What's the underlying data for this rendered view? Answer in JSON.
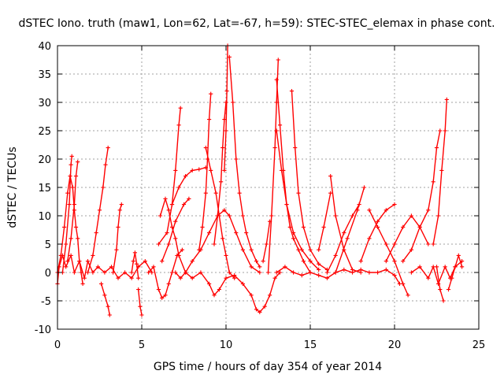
{
  "chart_data": {
    "type": "scatter",
    "title": "dSTEC Iono. truth (maw1, Lon=62, Lat=-67, h=59): STEC-STEC_elemax in phase cont.",
    "xlabel": "GPS time / hours of day 354 of year 2014",
    "ylabel": "dSTEC  / TECUs",
    "xlim": [
      0,
      25
    ],
    "ylim": [
      -10,
      40
    ],
    "x_ticks": [
      0,
      5,
      10,
      15,
      20,
      25
    ],
    "y_ticks": [
      -10,
      -5,
      0,
      5,
      10,
      15,
      20,
      25,
      30,
      35,
      40
    ],
    "grid": true,
    "marker": "plus",
    "color": "#ff0000",
    "series": [
      {
        "points": [
          [
            0.0,
            0.0
          ],
          [
            0.2,
            3.0
          ],
          [
            0.4,
            8.0
          ],
          [
            0.6,
            14.0
          ],
          [
            0.75,
            17.0
          ],
          [
            0.9,
            15.0
          ],
          [
            1.0,
            11.0
          ],
          [
            1.1,
            8.0
          ],
          [
            1.2,
            6.0
          ],
          [
            1.3,
            2.0
          ],
          [
            1.4,
            0.0
          ],
          [
            1.5,
            -2.0
          ]
        ]
      },
      {
        "points": [
          [
            0.3,
            0.0
          ],
          [
            0.5,
            5.0
          ],
          [
            0.7,
            12.0
          ],
          [
            0.8,
            19.0
          ],
          [
            0.85,
            20.5
          ]
        ]
      },
      {
        "points": [
          [
            0.6,
            2.0
          ],
          [
            0.8,
            6.0
          ],
          [
            1.0,
            12.0
          ],
          [
            1.1,
            17.0
          ],
          [
            1.2,
            19.5
          ]
        ]
      },
      {
        "points": [
          [
            0.0,
            -2.0
          ],
          [
            0.1,
            1.0
          ],
          [
            0.3,
            3.0
          ],
          [
            0.5,
            1.0
          ],
          [
            0.8,
            3.0
          ],
          [
            1.0,
            0.0
          ],
          [
            1.3,
            2.0
          ],
          [
            1.6,
            -1.0
          ],
          [
            1.8,
            2.0
          ],
          [
            2.1,
            0.0
          ],
          [
            2.4,
            1.0
          ],
          [
            2.8,
            0.0
          ],
          [
            3.2,
            1.0
          ],
          [
            3.6,
            -1.0
          ],
          [
            4.0,
            0.0
          ],
          [
            4.4,
            -1.0
          ],
          [
            4.8,
            1.0
          ],
          [
            5.2,
            2.0
          ],
          [
            5.6,
            0.0
          ]
        ]
      },
      {
        "points": [
          [
            1.8,
            0.0
          ],
          [
            2.1,
            3.0
          ],
          [
            2.3,
            7.0
          ],
          [
            2.5,
            11.0
          ],
          [
            2.7,
            15.0
          ],
          [
            2.85,
            19.0
          ],
          [
            3.0,
            22.0
          ]
        ]
      },
      {
        "points": [
          [
            2.6,
            -2.0
          ],
          [
            2.8,
            -4.0
          ],
          [
            3.0,
            -6.0
          ],
          [
            3.1,
            -7.5
          ]
        ]
      },
      {
        "points": [
          [
            3.3,
            0.0
          ],
          [
            3.5,
            4.0
          ],
          [
            3.6,
            8.0
          ],
          [
            3.7,
            11.0
          ],
          [
            3.8,
            12.0
          ]
        ]
      },
      {
        "points": [
          [
            4.4,
            0.0
          ],
          [
            4.5,
            2.0
          ],
          [
            4.6,
            3.5
          ],
          [
            4.7,
            1.5
          ],
          [
            4.8,
            -1.0
          ]
        ]
      },
      {
        "points": [
          [
            4.8,
            -3.0
          ],
          [
            4.9,
            -6.0
          ],
          [
            5.0,
            -7.5
          ]
        ]
      },
      {
        "points": [
          [
            5.4,
            0.0
          ],
          [
            5.7,
            1.0
          ],
          [
            6.0,
            -3.0
          ],
          [
            6.2,
            -4.5
          ],
          [
            6.4,
            -4.0
          ],
          [
            6.6,
            -2.0
          ],
          [
            6.8,
            0.0
          ],
          [
            7.1,
            3.0
          ],
          [
            7.4,
            4.0
          ]
        ]
      },
      {
        "points": [
          [
            6.1,
            10.0
          ],
          [
            6.4,
            13.0
          ],
          [
            6.6,
            11.0
          ],
          [
            6.8,
            8.0
          ],
          [
            7.0,
            6.0
          ],
          [
            7.2,
            3.0
          ],
          [
            7.6,
            0.0
          ],
          [
            8.0,
            -1.0
          ],
          [
            8.5,
            0.0
          ],
          [
            9.0,
            -2.0
          ],
          [
            9.3,
            -4.0
          ],
          [
            9.6,
            -3.0
          ],
          [
            10.0,
            -1.0
          ],
          [
            10.5,
            -0.5
          ],
          [
            11.0,
            -2.0
          ],
          [
            11.5,
            -4.0
          ],
          [
            11.8,
            -6.5
          ],
          [
            12.0,
            -7.0
          ],
          [
            12.3,
            -6.0
          ],
          [
            12.6,
            -4.0
          ],
          [
            12.9,
            -1.0
          ],
          [
            13.2,
            0.0
          ]
        ]
      },
      {
        "points": [
          [
            6.0,
            5.0
          ],
          [
            6.5,
            7.0
          ],
          [
            6.8,
            12.0
          ],
          [
            7.0,
            18.0
          ],
          [
            7.2,
            26.0
          ],
          [
            7.3,
            29.0
          ]
        ]
      },
      {
        "points": [
          [
            7.0,
            0.0
          ],
          [
            7.3,
            -1.0
          ],
          [
            7.6,
            0.0
          ],
          [
            8.0,
            2.0
          ],
          [
            8.5,
            4.0
          ],
          [
            9.0,
            7.0
          ],
          [
            9.5,
            10.0
          ],
          [
            9.9,
            11.0
          ],
          [
            10.2,
            10.0
          ],
          [
            10.6,
            7.0
          ],
          [
            11.0,
            4.0
          ],
          [
            11.5,
            1.0
          ],
          [
            12.0,
            0.0
          ]
        ]
      },
      {
        "points": [
          [
            6.8,
            12.0
          ],
          [
            7.2,
            15.0
          ],
          [
            7.6,
            17.0
          ],
          [
            8.0,
            18.0
          ],
          [
            8.4,
            18.2
          ],
          [
            8.8,
            18.5
          ]
        ]
      },
      {
        "points": [
          [
            6.2,
            2.0
          ],
          [
            6.6,
            5.0
          ],
          [
            7.0,
            9.0
          ],
          [
            7.5,
            12.0
          ],
          [
            7.8,
            13.0
          ]
        ]
      },
      {
        "points": [
          [
            8.4,
            4.0
          ],
          [
            8.6,
            8.0
          ],
          [
            8.8,
            14.0
          ],
          [
            8.9,
            20.0
          ],
          [
            9.0,
            27.0
          ],
          [
            9.1,
            31.5
          ]
        ]
      },
      {
        "points": [
          [
            8.8,
            22.0
          ],
          [
            9.1,
            18.0
          ],
          [
            9.4,
            14.0
          ],
          [
            9.6,
            10.0
          ],
          [
            9.8,
            6.0
          ],
          [
            10.0,
            3.0
          ],
          [
            10.2,
            0.0
          ],
          [
            10.5,
            -1.0
          ]
        ]
      },
      {
        "points": [
          [
            9.3,
            5.0
          ],
          [
            9.5,
            10.0
          ],
          [
            9.7,
            16.0
          ],
          [
            9.8,
            22.0
          ],
          [
            9.9,
            27.0
          ],
          [
            10.0,
            30.0
          ]
        ]
      },
      {
        "points": [
          [
            9.9,
            18.0
          ],
          [
            10.0,
            25.0
          ],
          [
            10.05,
            32.0
          ],
          [
            10.1,
            40.0
          ]
        ]
      },
      {
        "points": [
          [
            10.2,
            38.0
          ],
          [
            10.4,
            30.0
          ],
          [
            10.6,
            20.0
          ],
          [
            10.8,
            14.0
          ],
          [
            11.0,
            10.0
          ],
          [
            11.2,
            7.0
          ],
          [
            11.5,
            4.0
          ],
          [
            11.8,
            2.0
          ],
          [
            12.0,
            1.0
          ]
        ]
      },
      {
        "points": [
          [
            12.2,
            2.0
          ],
          [
            12.4,
            5.0
          ],
          [
            12.6,
            9.0
          ]
        ]
      },
      {
        "points": [
          [
            12.5,
            0.0
          ],
          [
            12.7,
            10.0
          ],
          [
            12.9,
            22.0
          ],
          [
            13.0,
            30.0
          ],
          [
            13.1,
            37.5
          ]
        ]
      },
      {
        "points": [
          [
            13.0,
            34.0
          ],
          [
            13.2,
            26.0
          ],
          [
            13.4,
            18.0
          ],
          [
            13.6,
            12.0
          ],
          [
            13.8,
            8.0
          ],
          [
            14.0,
            6.0
          ],
          [
            14.3,
            4.0
          ],
          [
            14.6,
            2.0
          ],
          [
            15.0,
            0.0
          ]
        ]
      },
      {
        "points": [
          [
            13.0,
            25.0
          ],
          [
            13.3,
            18.0
          ],
          [
            13.6,
            12.0
          ],
          [
            14.0,
            7.0
          ],
          [
            14.5,
            4.0
          ],
          [
            15.0,
            2.0
          ],
          [
            15.5,
            0.5
          ]
        ]
      },
      {
        "points": [
          [
            13.9,
            32.0
          ],
          [
            14.1,
            22.0
          ],
          [
            14.3,
            14.0
          ],
          [
            14.6,
            8.0
          ],
          [
            15.0,
            4.0
          ],
          [
            15.5,
            1.5
          ],
          [
            16.0,
            0.5
          ]
        ]
      },
      {
        "points": [
          [
            13.0,
            0.0
          ],
          [
            13.5,
            1.0
          ],
          [
            14.0,
            0.0
          ],
          [
            14.5,
            -0.5
          ],
          [
            15.0,
            0.0
          ],
          [
            15.5,
            -0.5
          ],
          [
            16.0,
            -1.0
          ],
          [
            16.5,
            0.0
          ],
          [
            17.0,
            0.5
          ],
          [
            17.5,
            0.0
          ],
          [
            18.0,
            0.5
          ],
          [
            18.5,
            0.0
          ],
          [
            19.0,
            0.0
          ],
          [
            19.5,
            0.5
          ],
          [
            20.0,
            -0.5
          ],
          [
            20.3,
            -2.0
          ]
        ]
      },
      {
        "points": [
          [
            15.5,
            4.0
          ],
          [
            15.8,
            8.0
          ],
          [
            16.2,
            14.0
          ]
        ]
      },
      {
        "points": [
          [
            16.2,
            17.0
          ],
          [
            16.5,
            10.0
          ],
          [
            17.0,
            4.0
          ],
          [
            17.5,
            0.5
          ],
          [
            18.0,
            0.0
          ]
        ]
      },
      {
        "points": [
          [
            16.0,
            0.0
          ],
          [
            16.5,
            3.0
          ],
          [
            17.0,
            7.0
          ],
          [
            17.5,
            10.0
          ],
          [
            17.9,
            12.0
          ]
        ]
      },
      {
        "points": [
          [
            16.5,
            0.0
          ],
          [
            17.2,
            6.0
          ],
          [
            17.8,
            11.0
          ],
          [
            18.2,
            15.0
          ]
        ]
      },
      {
        "points": [
          [
            18.0,
            2.0
          ],
          [
            18.5,
            6.0
          ],
          [
            19.0,
            9.0
          ],
          [
            19.5,
            11.0
          ],
          [
            20.0,
            12.0
          ]
        ]
      },
      {
        "points": [
          [
            18.5,
            11.0
          ],
          [
            19.0,
            8.0
          ],
          [
            19.5,
            5.0
          ],
          [
            20.0,
            2.0
          ],
          [
            20.5,
            -2.0
          ],
          [
            20.8,
            -4.0
          ]
        ]
      },
      {
        "points": [
          [
            19.5,
            2.0
          ],
          [
            20.0,
            5.0
          ],
          [
            20.5,
            8.0
          ],
          [
            21.0,
            10.0
          ],
          [
            21.5,
            8.0
          ],
          [
            22.0,
            5.0
          ]
        ]
      },
      {
        "points": [
          [
            20.5,
            2.0
          ],
          [
            21.0,
            4.0
          ],
          [
            21.5,
            8.0
          ],
          [
            22.0,
            11.0
          ],
          [
            22.3,
            16.0
          ],
          [
            22.5,
            22.0
          ],
          [
            22.7,
            25.0
          ]
        ]
      },
      {
        "points": [
          [
            21.0,
            0.0
          ],
          [
            21.5,
            1.0
          ],
          [
            22.0,
            -1.0
          ],
          [
            22.3,
            1.0
          ],
          [
            22.6,
            -2.0
          ],
          [
            23.0,
            1.0
          ],
          [
            23.3,
            -1.0
          ],
          [
            23.6,
            1.0
          ],
          [
            24.0,
            2.0
          ]
        ]
      },
      {
        "points": [
          [
            22.5,
            1.0
          ],
          [
            22.7,
            -3.0
          ],
          [
            22.9,
            -5.0
          ]
        ]
      },
      {
        "points": [
          [
            22.3,
            5.0
          ],
          [
            22.6,
            10.0
          ],
          [
            22.8,
            18.0
          ],
          [
            23.0,
            25.0
          ],
          [
            23.1,
            30.5
          ]
        ]
      },
      {
        "points": [
          [
            23.2,
            -3.0
          ],
          [
            23.4,
            -1.0
          ],
          [
            23.6,
            1.0
          ],
          [
            23.8,
            3.0
          ],
          [
            24.0,
            1.0
          ]
        ]
      }
    ]
  }
}
